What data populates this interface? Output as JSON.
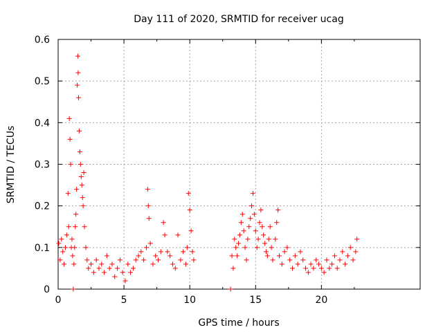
{
  "chart_data": {
    "type": "scatter",
    "title": "Day 111 of 2020, SRMTID for receiver ucag",
    "xlabel": "GPS time / hours",
    "ylabel": "SRMTID / TECUs",
    "xlim": [
      0,
      27.5
    ],
    "ylim": [
      0,
      0.6
    ],
    "xticks": [
      0,
      5,
      10,
      15,
      20
    ],
    "yticks": [
      0,
      0.1,
      0.2,
      0.3,
      0.4,
      0.5,
      0.6
    ],
    "xtick_labels": [
      "0",
      "5",
      "10",
      "15",
      "20"
    ],
    "ytick_labels": [
      "0",
      "0.1",
      "0.2",
      "0.3",
      "0.4",
      "0.5",
      "0.6"
    ],
    "grid": true,
    "marker": "+",
    "color": "#ff0000",
    "series": [
      {
        "name": "SRMTID",
        "points": [
          [
            0.05,
            0.11
          ],
          [
            0.15,
            0.07
          ],
          [
            0.25,
            0.12
          ],
          [
            0.35,
            0.09
          ],
          [
            0.45,
            0.06
          ],
          [
            0.55,
            0.1
          ],
          [
            0.65,
            0.13
          ],
          [
            0.75,
            0.23
          ],
          [
            0.8,
            0.15
          ],
          [
            0.85,
            0.41
          ],
          [
            0.9,
            0.36
          ],
          [
            0.95,
            0.3
          ],
          [
            1.0,
            0.1
          ],
          [
            1.05,
            0.12
          ],
          [
            1.1,
            0.08
          ],
          [
            1.15,
            0.0
          ],
          [
            1.2,
            0.06
          ],
          [
            1.25,
            0.1
          ],
          [
            1.3,
            0.15
          ],
          [
            1.35,
            0.18
          ],
          [
            1.4,
            0.24
          ],
          [
            1.45,
            0.49
          ],
          [
            1.5,
            0.56
          ],
          [
            1.52,
            0.52
          ],
          [
            1.55,
            0.46
          ],
          [
            1.6,
            0.38
          ],
          [
            1.65,
            0.33
          ],
          [
            1.7,
            0.3
          ],
          [
            1.75,
            0.27
          ],
          [
            1.8,
            0.25
          ],
          [
            1.85,
            0.22
          ],
          [
            1.9,
            0.2
          ],
          [
            1.95,
            0.28
          ],
          [
            2.0,
            0.15
          ],
          [
            2.1,
            0.1
          ],
          [
            2.2,
            0.07
          ],
          [
            2.3,
            0.05
          ],
          [
            2.5,
            0.06
          ],
          [
            2.7,
            0.04
          ],
          [
            2.9,
            0.07
          ],
          [
            3.1,
            0.05
          ],
          [
            3.3,
            0.06
          ],
          [
            3.5,
            0.04
          ],
          [
            3.7,
            0.08
          ],
          [
            3.9,
            0.05
          ],
          [
            4.1,
            0.06
          ],
          [
            4.3,
            0.03
          ],
          [
            4.5,
            0.05
          ],
          [
            4.7,
            0.07
          ],
          [
            4.9,
            0.04
          ],
          [
            5.1,
            0.02
          ],
          [
            5.3,
            0.06
          ],
          [
            5.5,
            0.04
          ],
          [
            5.7,
            0.05
          ],
          [
            5.9,
            0.07
          ],
          [
            6.1,
            0.08
          ],
          [
            6.3,
            0.09
          ],
          [
            6.5,
            0.07
          ],
          [
            6.7,
            0.1
          ],
          [
            6.8,
            0.24
          ],
          [
            6.85,
            0.2
          ],
          [
            6.9,
            0.17
          ],
          [
            7.0,
            0.11
          ],
          [
            7.2,
            0.06
          ],
          [
            7.4,
            0.08
          ],
          [
            7.6,
            0.07
          ],
          [
            7.8,
            0.09
          ],
          [
            8.0,
            0.16
          ],
          [
            8.1,
            0.13
          ],
          [
            8.3,
            0.09
          ],
          [
            8.5,
            0.08
          ],
          [
            8.7,
            0.06
          ],
          [
            8.9,
            0.05
          ],
          [
            9.1,
            0.13
          ],
          [
            9.3,
            0.07
          ],
          [
            9.5,
            0.09
          ],
          [
            9.7,
            0.06
          ],
          [
            9.8,
            0.1
          ],
          [
            9.9,
            0.23
          ],
          [
            10.0,
            0.19
          ],
          [
            10.1,
            0.14
          ],
          [
            10.2,
            0.09
          ],
          [
            10.3,
            0.07
          ],
          [
            13.1,
            0.0
          ],
          [
            13.2,
            0.08
          ],
          [
            13.3,
            0.05
          ],
          [
            13.4,
            0.12
          ],
          [
            13.5,
            0.1
          ],
          [
            13.6,
            0.08
          ],
          [
            13.7,
            0.11
          ],
          [
            13.8,
            0.13
          ],
          [
            13.9,
            0.16
          ],
          [
            14.0,
            0.18
          ],
          [
            14.1,
            0.14
          ],
          [
            14.2,
            0.1
          ],
          [
            14.3,
            0.07
          ],
          [
            14.4,
            0.12
          ],
          [
            14.5,
            0.15
          ],
          [
            14.6,
            0.17
          ],
          [
            14.7,
            0.2
          ],
          [
            14.8,
            0.23
          ],
          [
            14.9,
            0.18
          ],
          [
            15.0,
            0.14
          ],
          [
            15.1,
            0.1
          ],
          [
            15.2,
            0.12
          ],
          [
            15.3,
            0.16
          ],
          [
            15.4,
            0.19
          ],
          [
            15.5,
            0.15
          ],
          [
            15.6,
            0.13
          ],
          [
            15.7,
            0.11
          ],
          [
            15.8,
            0.09
          ],
          [
            15.9,
            0.08
          ],
          [
            16.0,
            0.12
          ],
          [
            16.1,
            0.15
          ],
          [
            16.2,
            0.1
          ],
          [
            16.3,
            0.07
          ],
          [
            16.5,
            0.12
          ],
          [
            16.6,
            0.16
          ],
          [
            16.7,
            0.19
          ],
          [
            16.8,
            0.08
          ],
          [
            17.0,
            0.06
          ],
          [
            17.2,
            0.09
          ],
          [
            17.4,
            0.1
          ],
          [
            17.6,
            0.07
          ],
          [
            17.8,
            0.05
          ],
          [
            18.0,
            0.08
          ],
          [
            18.2,
            0.06
          ],
          [
            18.4,
            0.09
          ],
          [
            18.6,
            0.07
          ],
          [
            18.8,
            0.05
          ],
          [
            19.0,
            0.04
          ],
          [
            19.2,
            0.06
          ],
          [
            19.4,
            0.05
          ],
          [
            19.6,
            0.07
          ],
          [
            19.8,
            0.06
          ],
          [
            20.0,
            0.05
          ],
          [
            20.2,
            0.04
          ],
          [
            20.4,
            0.07
          ],
          [
            20.6,
            0.05
          ],
          [
            20.8,
            0.06
          ],
          [
            21.0,
            0.08
          ],
          [
            21.2,
            0.05
          ],
          [
            21.4,
            0.07
          ],
          [
            21.6,
            0.09
          ],
          [
            21.8,
            0.06
          ],
          [
            22.0,
            0.08
          ],
          [
            22.2,
            0.1
          ],
          [
            22.4,
            0.07
          ],
          [
            22.6,
            0.09
          ],
          [
            22.7,
            0.12
          ]
        ]
      }
    ]
  }
}
